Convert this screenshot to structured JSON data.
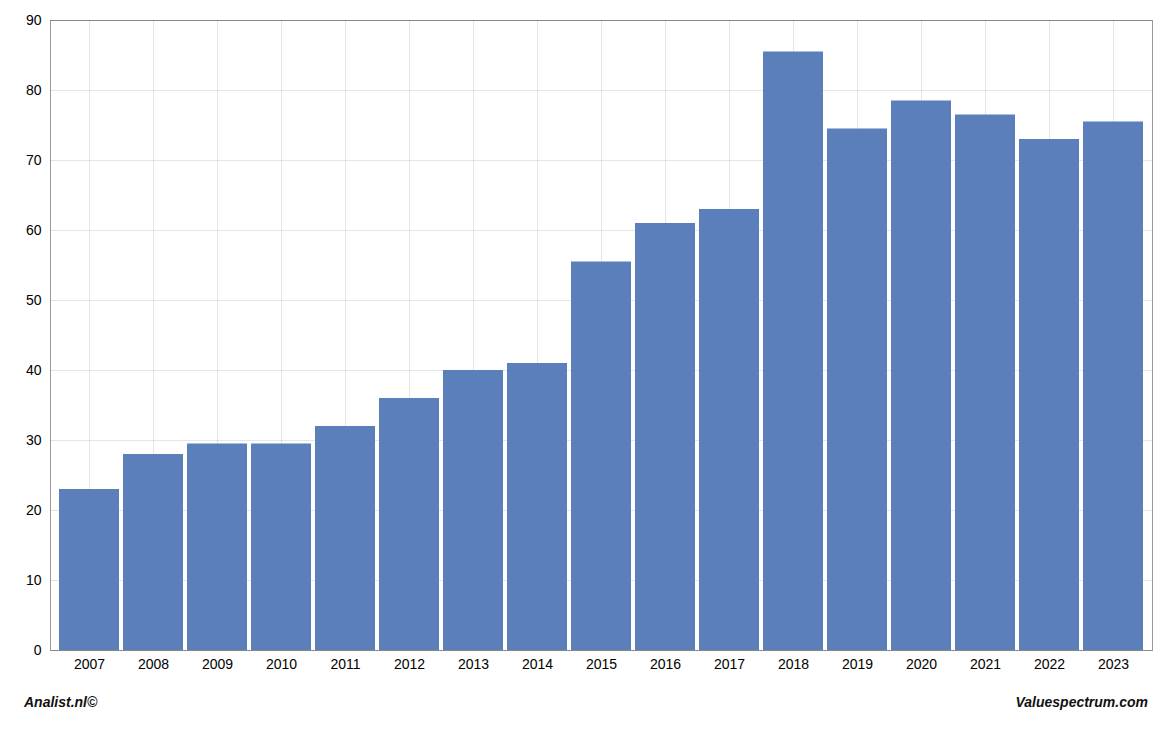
{
  "chart_data": {
    "type": "bar",
    "categories": [
      "2007",
      "2008",
      "2009",
      "2010",
      "2011",
      "2012",
      "2013",
      "2014",
      "2015",
      "2016",
      "2017",
      "2018",
      "2019",
      "2020",
      "2021",
      "2022",
      "2023"
    ],
    "values": [
      23.0,
      28.0,
      29.5,
      29.5,
      32.0,
      36.0,
      40.0,
      41.0,
      55.5,
      61.0,
      63.0,
      85.5,
      74.5,
      78.5,
      76.5,
      73.0,
      75.5
    ],
    "color": "#5b7fbb",
    "ylim": [
      0,
      90
    ],
    "yticks": [
      0,
      10,
      20,
      30,
      40,
      50,
      60,
      70,
      80,
      90
    ],
    "grid": true,
    "annotations": [
      "Analist.nl©",
      "Valuespectrum.com"
    ]
  }
}
